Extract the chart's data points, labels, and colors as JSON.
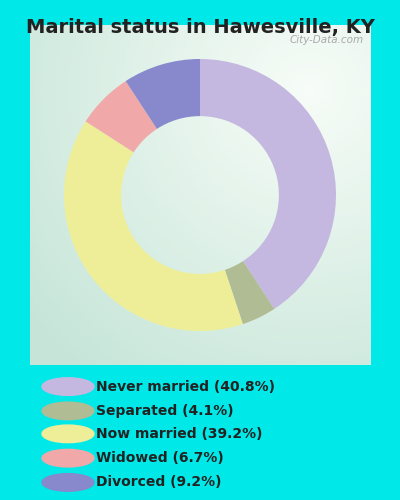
{
  "title": "Marital status in Hawesville, KY",
  "categories": [
    "Never married",
    "Separated",
    "Now married",
    "Widowed",
    "Divorced"
  ],
  "values": [
    40.8,
    4.1,
    39.2,
    6.7,
    9.2
  ],
  "colors": [
    "#c5b8e0",
    "#b0bc94",
    "#eeee99",
    "#f0a8a8",
    "#8888cc"
  ],
  "legend_labels": [
    "Never married (40.8%)",
    "Separated (4.1%)",
    "Now married (39.2%)",
    "Widowed (6.7%)",
    "Divorced (9.2%)"
  ],
  "bg_cyan": "#00e8e8",
  "chart_bg": "#d8ede0",
  "title_fontsize": 14,
  "legend_fontsize": 10,
  "donut_width": 0.42,
  "start_angle": 90
}
